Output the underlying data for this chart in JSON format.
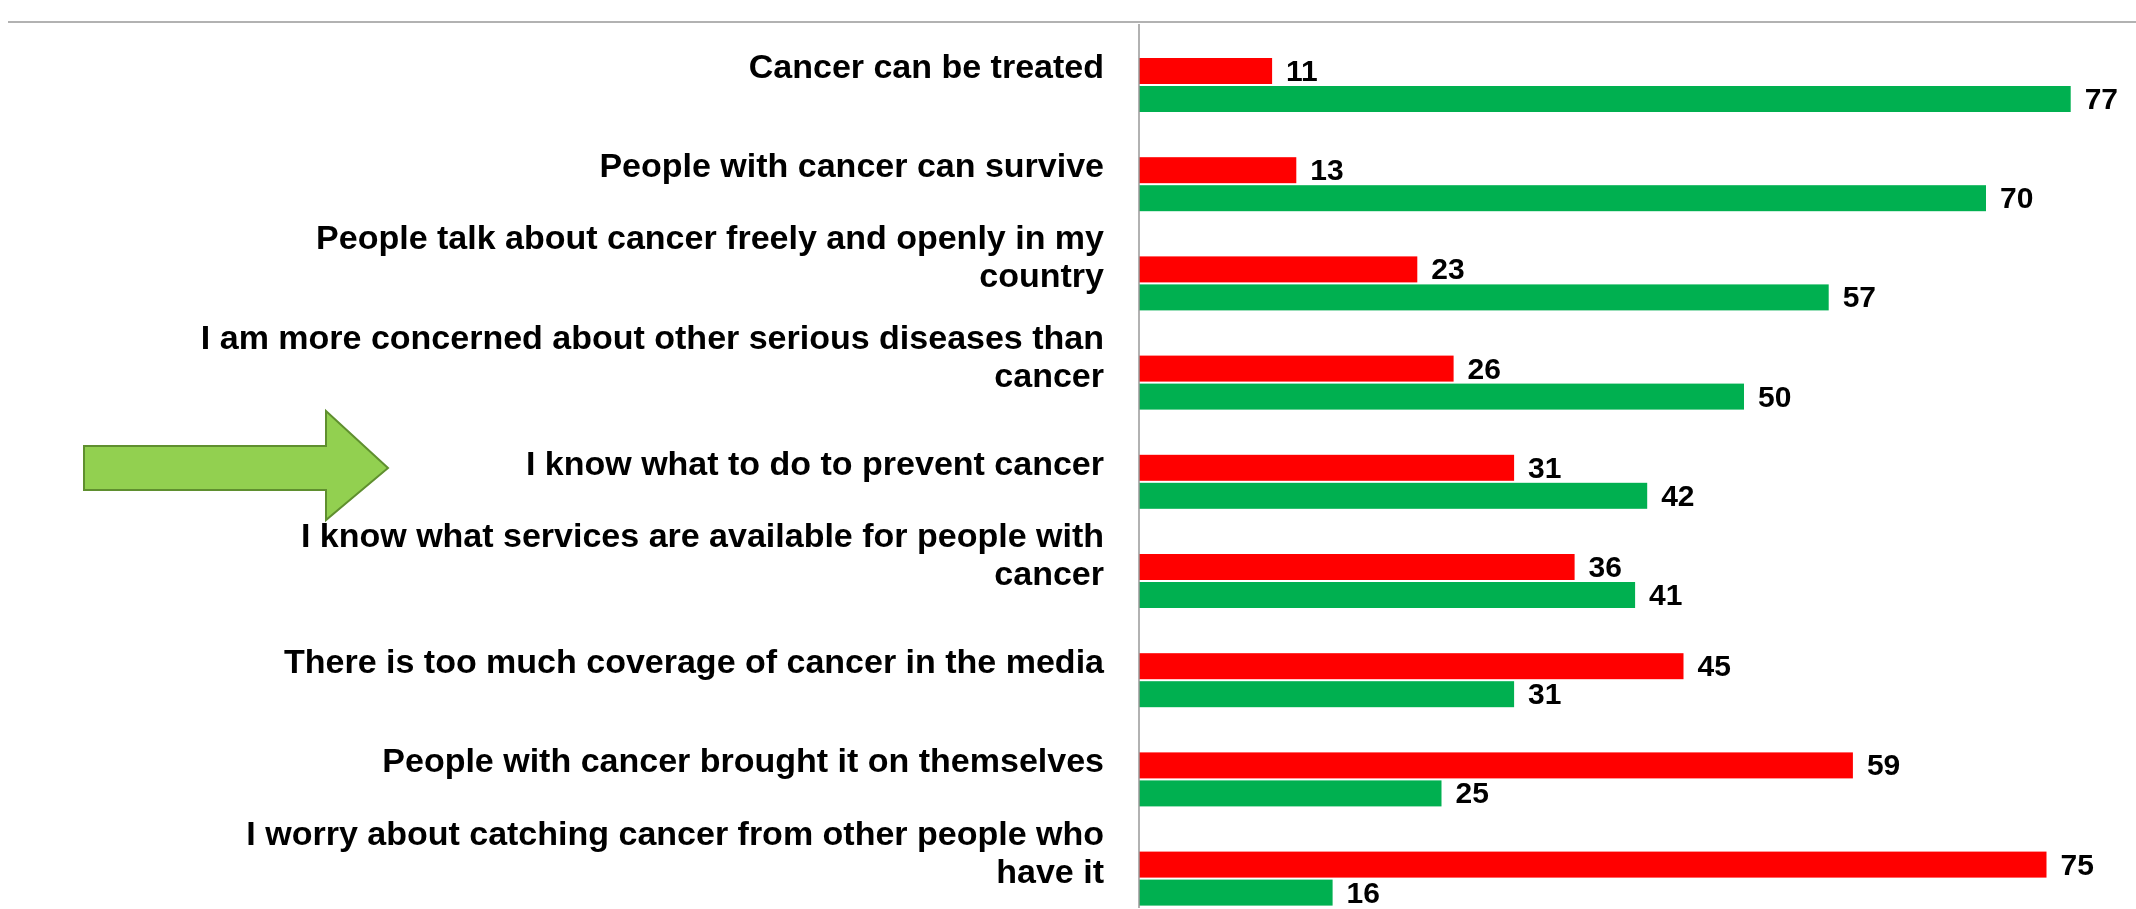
{
  "chart_data": {
    "type": "bar",
    "orientation": "horizontal",
    "data_labels": true,
    "categories": [
      "Cancer can be treated",
      "People with cancer can survive",
      "People talk about cancer freely and openly in my country",
      "I am more concerned about other serious diseases than cancer",
      "I know what to do to prevent cancer",
      "I know what services are available for people with cancer",
      "There is too much coverage of cancer in the media",
      "People with cancer brought it on themselves",
      "I worry about catching cancer from other people who have it"
    ],
    "series": [
      {
        "color": "#ff0000",
        "values": [
          11,
          13,
          23,
          26,
          31,
          36,
          45,
          59,
          75
        ]
      },
      {
        "color": "#00b050",
        "values": [
          77,
          70,
          57,
          50,
          42,
          41,
          31,
          25,
          16
        ]
      }
    ]
  }
}
